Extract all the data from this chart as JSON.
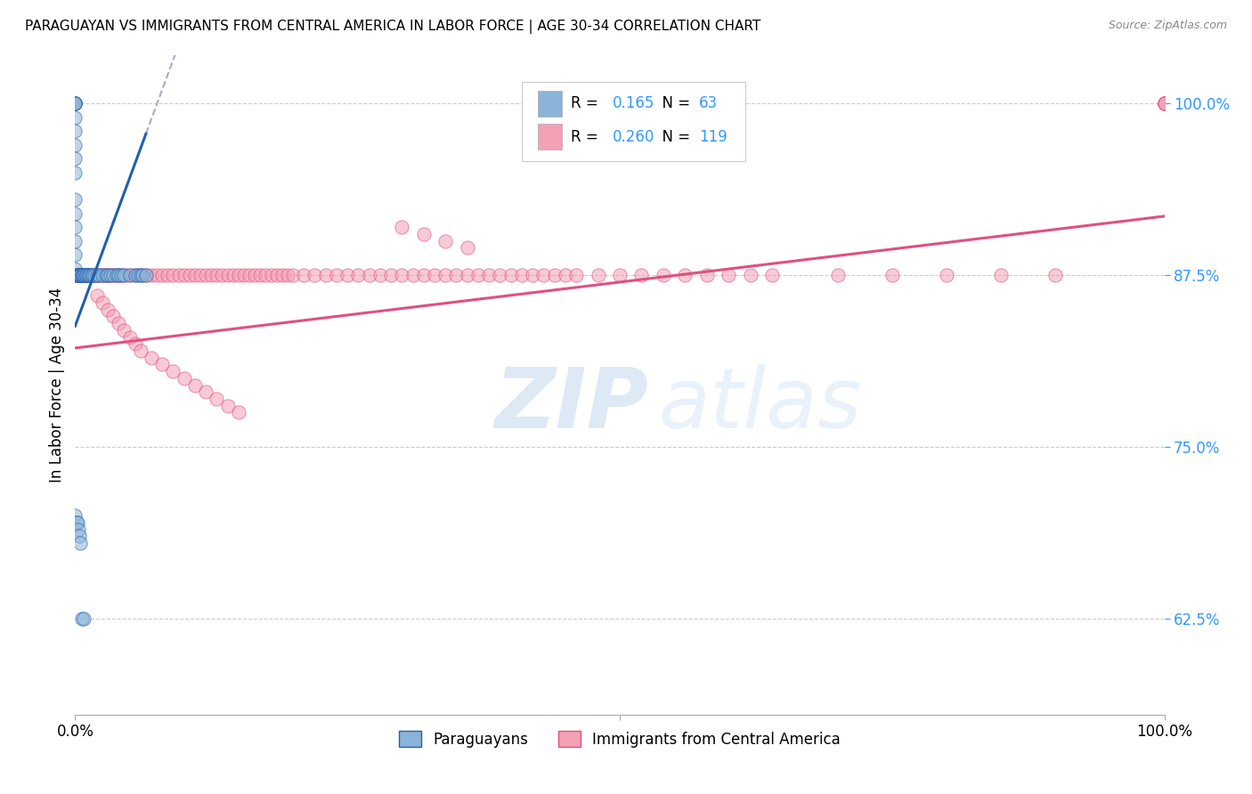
{
  "title": "PARAGUAYAN VS IMMIGRANTS FROM CENTRAL AMERICA IN LABOR FORCE | AGE 30-34 CORRELATION CHART",
  "source": "Source: ZipAtlas.com",
  "ylabel": "In Labor Force | Age 30-34",
  "xlim": [
    0.0,
    1.0
  ],
  "ylim": [
    0.555,
    1.035
  ],
  "blue_color": "#8ab4d8",
  "pink_color": "#f4a0b5",
  "blue_line_color": "#2060b0",
  "pink_line_color": "#e05080",
  "blue_dash_color": "#aaaacc",
  "watermark_color": "#c8d8ee",
  "grid_color": "#cccccc",
  "yticks": [
    0.625,
    0.75,
    0.875,
    1.0
  ],
  "ytick_labels": [
    "62.5%",
    "75.0%",
    "87.5%",
    "100.0%"
  ],
  "blue_line_x0": 0.0,
  "blue_line_y0": 0.838,
  "blue_line_x1": 0.065,
  "blue_line_y1": 0.978,
  "pink_line_x0": 0.0,
  "pink_line_x1": 1.0,
  "pink_line_y0": 0.822,
  "pink_line_y1": 0.918,
  "blue_scatter_x": [
    0.0,
    0.0,
    0.0,
    0.0,
    0.0,
    0.0,
    0.0,
    0.0,
    0.0,
    0.0,
    0.0,
    0.0,
    0.0,
    0.0,
    0.0,
    0.0,
    0.002,
    0.002,
    0.003,
    0.004,
    0.004,
    0.005,
    0.005,
    0.005,
    0.006,
    0.006,
    0.007,
    0.008,
    0.009,
    0.01,
    0.01,
    0.01,
    0.012,
    0.013,
    0.014,
    0.015,
    0.016,
    0.018,
    0.02,
    0.022,
    0.025,
    0.028,
    0.03,
    0.032,
    0.035,
    0.038,
    0.04,
    0.042,
    0.045,
    0.05,
    0.055,
    0.058,
    0.06,
    0.062,
    0.065,
    0.0,
    0.001,
    0.002,
    0.003,
    0.004,
    0.005,
    0.006,
    0.008
  ],
  "blue_scatter_y": [
    1.0,
    1.0,
    1.0,
    1.0,
    1.0,
    0.99,
    0.98,
    0.97,
    0.96,
    0.95,
    0.93,
    0.92,
    0.91,
    0.9,
    0.89,
    0.88,
    0.875,
    0.875,
    0.875,
    0.875,
    0.875,
    0.875,
    0.875,
    0.875,
    0.875,
    0.875,
    0.875,
    0.875,
    0.875,
    0.875,
    0.875,
    0.875,
    0.875,
    0.875,
    0.875,
    0.875,
    0.875,
    0.875,
    0.875,
    0.875,
    0.875,
    0.875,
    0.875,
    0.875,
    0.875,
    0.875,
    0.875,
    0.875,
    0.875,
    0.875,
    0.875,
    0.875,
    0.875,
    0.875,
    0.875,
    0.7,
    0.695,
    0.695,
    0.69,
    0.685,
    0.68,
    0.625,
    0.625
  ],
  "pink_scatter_x": [
    0.0,
    0.0,
    0.0,
    0.002,
    0.004,
    0.006,
    0.008,
    0.01,
    0.012,
    0.014,
    0.016,
    0.018,
    0.02,
    0.022,
    0.024,
    0.026,
    0.028,
    0.03,
    0.032,
    0.035,
    0.038,
    0.04,
    0.043,
    0.046,
    0.05,
    0.055,
    0.06,
    0.065,
    0.07,
    0.075,
    0.08,
    0.085,
    0.09,
    0.095,
    0.1,
    0.105,
    0.11,
    0.115,
    0.12,
    0.125,
    0.13,
    0.135,
    0.14,
    0.145,
    0.15,
    0.155,
    0.16,
    0.165,
    0.17,
    0.175,
    0.18,
    0.185,
    0.19,
    0.195,
    0.2,
    0.21,
    0.22,
    0.23,
    0.24,
    0.25,
    0.26,
    0.27,
    0.28,
    0.29,
    0.3,
    0.31,
    0.32,
    0.33,
    0.34,
    0.35,
    0.36,
    0.37,
    0.38,
    0.39,
    0.4,
    0.41,
    0.42,
    0.43,
    0.44,
    0.45,
    0.46,
    0.48,
    0.5,
    0.52,
    0.54,
    0.56,
    0.58,
    0.6,
    0.62,
    0.64,
    0.7,
    0.75,
    0.8,
    0.85,
    0.9,
    1.0,
    1.0,
    1.0,
    1.0,
    1.0,
    1.0,
    0.02,
    0.025,
    0.03,
    0.035,
    0.04,
    0.045,
    0.05,
    0.055,
    0.06,
    0.07,
    0.08,
    0.09,
    0.1,
    0.11,
    0.12,
    0.13,
    0.14,
    0.15,
    0.3,
    0.32,
    0.34,
    0.36
  ],
  "pink_scatter_y": [
    0.875,
    0.875,
    0.875,
    0.875,
    0.875,
    0.875,
    0.875,
    0.875,
    0.875,
    0.875,
    0.875,
    0.875,
    0.875,
    0.875,
    0.875,
    0.875,
    0.875,
    0.875,
    0.875,
    0.875,
    0.875,
    0.875,
    0.875,
    0.875,
    0.875,
    0.875,
    0.875,
    0.875,
    0.875,
    0.875,
    0.875,
    0.875,
    0.875,
    0.875,
    0.875,
    0.875,
    0.875,
    0.875,
    0.875,
    0.875,
    0.875,
    0.875,
    0.875,
    0.875,
    0.875,
    0.875,
    0.875,
    0.875,
    0.875,
    0.875,
    0.875,
    0.875,
    0.875,
    0.875,
    0.875,
    0.875,
    0.875,
    0.875,
    0.875,
    0.875,
    0.875,
    0.875,
    0.875,
    0.875,
    0.875,
    0.875,
    0.875,
    0.875,
    0.875,
    0.875,
    0.875,
    0.875,
    0.875,
    0.875,
    0.875,
    0.875,
    0.875,
    0.875,
    0.875,
    0.875,
    0.875,
    0.875,
    0.875,
    0.875,
    0.875,
    0.875,
    0.875,
    0.875,
    0.875,
    0.875,
    0.875,
    0.875,
    0.875,
    0.875,
    0.875,
    1.0,
    1.0,
    1.0,
    1.0,
    1.0,
    1.0,
    0.86,
    0.855,
    0.85,
    0.845,
    0.84,
    0.835,
    0.83,
    0.825,
    0.82,
    0.815,
    0.81,
    0.805,
    0.8,
    0.795,
    0.79,
    0.785,
    0.78,
    0.775,
    0.91,
    0.905,
    0.9,
    0.895
  ]
}
